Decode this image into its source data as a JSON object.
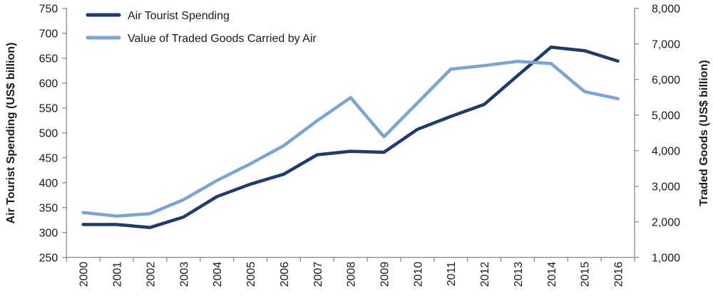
{
  "chart_data": {
    "type": "line",
    "title": "",
    "categories": [
      "2000",
      "2001",
      "2002",
      "2003",
      "2004",
      "2005",
      "2006",
      "2007",
      "2008",
      "2009",
      "2010",
      "2011",
      "2012",
      "2013",
      "2014",
      "2015",
      "2016"
    ],
    "ylabel_left": "Air Tourist Spending (US$ billion)",
    "ylabel_right": "Traded Goods (US$ billion)",
    "ylim_left": [
      250,
      750
    ],
    "yticks_left": [
      "250",
      "300",
      "350",
      "400",
      "450",
      "500",
      "550",
      "600",
      "650",
      "700",
      "750"
    ],
    "ylim_right": [
      1000,
      8000
    ],
    "yticks_right": [
      "1,000",
      "2,000",
      "3,000",
      "4,000",
      "5,000",
      "6,000",
      "7,000",
      "8,000"
    ],
    "grid": false,
    "legend_position": "top-left",
    "series": [
      {
        "name": "Air Tourist Spending",
        "axis": "left",
        "color": "#1f3a6e",
        "values": [
          316,
          316,
          310,
          331,
          372,
          397,
          417,
          456,
          463,
          461,
          507,
          533,
          557,
          615,
          672,
          665,
          644
        ]
      },
      {
        "name": "Value of Traded Goods Carried by Air",
        "axis": "right",
        "color": "#7ba3d4",
        "values": [
          2260,
          2160,
          2230,
          2620,
          3160,
          3630,
          4140,
          4840,
          5490,
          4390,
          5340,
          6290,
          6390,
          6510,
          6450,
          5660,
          5460
        ]
      }
    ]
  }
}
